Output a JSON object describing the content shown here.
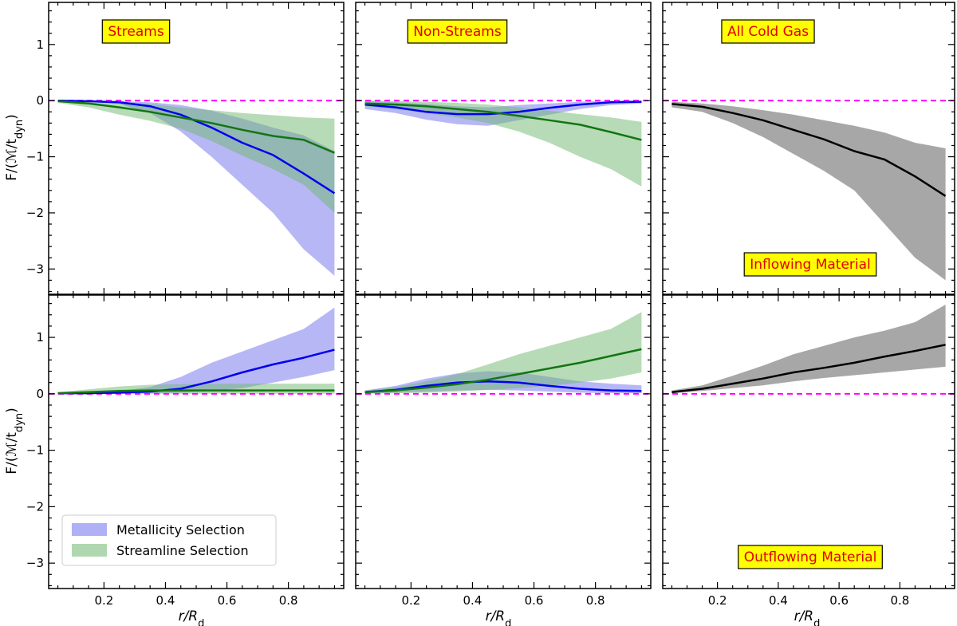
{
  "figure": {
    "xlabel": "r/R_d",
    "ylabel": "F/(ℳ/t_dyn)",
    "xlim": [
      0.02,
      0.98
    ],
    "ylim": [
      -3.45,
      1.75
    ],
    "xticks": [
      0.2,
      0.4,
      0.6,
      0.8
    ],
    "xtick_labels": [
      "0.2",
      "0.4",
      "0.6",
      "0.8"
    ],
    "yticks": [
      -3,
      -2,
      -1,
      0,
      1
    ],
    "ytick_labels": [
      "−3",
      "−2",
      "−1",
      "0",
      "1"
    ]
  },
  "colors": {
    "metallicity_line": "#0000ee",
    "metallicity_band": "#7070ee",
    "streamline_line": "#127512",
    "streamline_band": "#70b870",
    "allgas_line": "#000000",
    "allgas_band": "#8a8a8a",
    "zero_line": "#ff00ff",
    "annotation_bg": "#ffff00",
    "annotation_text": "#e00000"
  },
  "legend": {
    "metallicity": "Metallicity Selection",
    "streamline": "Streamline Selection"
  },
  "chart_data": [
    {
      "type": "line",
      "id": "streams-inflow",
      "title": "Streams",
      "annotation": "",
      "x": [
        0.05,
        0.15,
        0.25,
        0.35,
        0.45,
        0.55,
        0.65,
        0.75,
        0.85,
        0.95
      ],
      "series": [
        {
          "name": "Metallicity Selection",
          "color_key": "metallicity",
          "y": [
            0.0,
            -0.01,
            -0.03,
            -0.1,
            -0.25,
            -0.48,
            -0.75,
            -0.97,
            -1.3,
            -1.65
          ],
          "lo": [
            0.0,
            -0.02,
            -0.06,
            -0.22,
            -0.55,
            -1.0,
            -1.5,
            -2.0,
            -2.65,
            -3.12
          ],
          "hi": [
            0.0,
            0.0,
            -0.01,
            -0.03,
            -0.08,
            -0.18,
            -0.32,
            -0.48,
            -0.62,
            -0.9
          ]
        },
        {
          "name": "Streamline Selection",
          "color_key": "streamline",
          "y": [
            -0.01,
            -0.05,
            -0.12,
            -0.2,
            -0.3,
            -0.4,
            -0.52,
            -0.63,
            -0.7,
            -0.93
          ],
          "lo": [
            -0.04,
            -0.12,
            -0.25,
            -0.36,
            -0.5,
            -0.72,
            -0.98,
            -1.22,
            -1.5,
            -2.0
          ],
          "hi": [
            0.0,
            0.0,
            -0.02,
            -0.06,
            -0.12,
            -0.17,
            -0.22,
            -0.26,
            -0.3,
            -0.32
          ]
        }
      ]
    },
    {
      "type": "line",
      "id": "nonstreams-inflow",
      "title": "Non-Streams",
      "annotation": "",
      "x": [
        0.05,
        0.15,
        0.25,
        0.35,
        0.45,
        0.55,
        0.65,
        0.75,
        0.85,
        0.95
      ],
      "series": [
        {
          "name": "Metallicity Selection",
          "color_key": "metallicity",
          "y": [
            -0.07,
            -0.12,
            -0.2,
            -0.24,
            -0.24,
            -0.2,
            -0.13,
            -0.07,
            -0.03,
            -0.02
          ],
          "lo": [
            -0.15,
            -0.22,
            -0.34,
            -0.42,
            -0.45,
            -0.35,
            -0.25,
            -0.15,
            -0.08,
            -0.05
          ],
          "hi": [
            -0.01,
            -0.03,
            -0.06,
            -0.1,
            -0.12,
            -0.08,
            -0.05,
            -0.02,
            0.0,
            0.0
          ]
        },
        {
          "name": "Streamline Selection",
          "color_key": "streamline",
          "y": [
            -0.05,
            -0.07,
            -0.1,
            -0.15,
            -0.2,
            -0.27,
            -0.35,
            -0.43,
            -0.56,
            -0.7
          ],
          "lo": [
            -0.1,
            -0.15,
            -0.22,
            -0.3,
            -0.4,
            -0.55,
            -0.75,
            -1.0,
            -1.22,
            -1.53
          ],
          "hi": [
            0.0,
            -0.01,
            -0.02,
            -0.04,
            -0.07,
            -0.12,
            -0.18,
            -0.24,
            -0.3,
            -0.38
          ]
        }
      ]
    },
    {
      "type": "line",
      "id": "allgas-inflow",
      "title": "All Cold Gas",
      "annotation": "Inflowing Material",
      "x": [
        0.05,
        0.15,
        0.25,
        0.35,
        0.45,
        0.55,
        0.65,
        0.75,
        0.85,
        0.95
      ],
      "series": [
        {
          "name": "All Cold Gas",
          "color_key": "allgas",
          "y": [
            -0.06,
            -0.11,
            -0.22,
            -0.35,
            -0.52,
            -0.69,
            -0.9,
            -1.05,
            -1.35,
            -1.7
          ],
          "lo": [
            -0.12,
            -0.2,
            -0.4,
            -0.65,
            -0.95,
            -1.25,
            -1.6,
            -2.2,
            -2.8,
            -3.2
          ],
          "hi": [
            -0.02,
            -0.05,
            -0.1,
            -0.17,
            -0.25,
            -0.35,
            -0.45,
            -0.57,
            -0.75,
            -0.85
          ]
        }
      ]
    },
    {
      "type": "line",
      "id": "streams-outflow",
      "title": "",
      "annotation": "",
      "x": [
        0.05,
        0.15,
        0.25,
        0.35,
        0.45,
        0.55,
        0.65,
        0.75,
        0.85,
        0.95
      ],
      "series": [
        {
          "name": "Metallicity Selection",
          "color_key": "metallicity",
          "y": [
            0.01,
            0.01,
            0.02,
            0.04,
            0.09,
            0.22,
            0.38,
            0.52,
            0.64,
            0.78
          ],
          "lo": [
            0.0,
            0.0,
            0.0,
            0.01,
            0.02,
            0.05,
            0.1,
            0.2,
            0.3,
            0.42
          ],
          "hi": [
            0.02,
            0.03,
            0.05,
            0.12,
            0.3,
            0.55,
            0.75,
            0.95,
            1.15,
            1.53
          ]
        },
        {
          "name": "Streamline Selection",
          "color_key": "streamline",
          "y": [
            0.01,
            0.03,
            0.05,
            0.06,
            0.06,
            0.06,
            0.06,
            0.06,
            0.06,
            0.06
          ],
          "lo": [
            0.0,
            0.0,
            0.0,
            0.0,
            0.0,
            0.0,
            0.0,
            0.0,
            0.0,
            0.0
          ],
          "hi": [
            0.03,
            0.08,
            0.13,
            0.16,
            0.17,
            0.18,
            0.18,
            0.18,
            0.18,
            0.18
          ]
        }
      ]
    },
    {
      "type": "line",
      "id": "nonstreams-outflow",
      "title": "",
      "annotation": "",
      "x": [
        0.05,
        0.15,
        0.25,
        0.35,
        0.45,
        0.55,
        0.65,
        0.75,
        0.85,
        0.95
      ],
      "series": [
        {
          "name": "Metallicity Selection",
          "color_key": "metallicity",
          "y": [
            0.03,
            0.07,
            0.14,
            0.2,
            0.22,
            0.2,
            0.14,
            0.09,
            0.06,
            0.05
          ],
          "lo": [
            0.01,
            0.02,
            0.04,
            0.06,
            0.07,
            0.06,
            0.04,
            0.02,
            0.01,
            0.01
          ],
          "hi": [
            0.06,
            0.14,
            0.27,
            0.36,
            0.4,
            0.38,
            0.3,
            0.22,
            0.18,
            0.15
          ]
        },
        {
          "name": "Streamline Selection",
          "color_key": "streamline",
          "y": [
            0.03,
            0.06,
            0.11,
            0.17,
            0.25,
            0.35,
            0.45,
            0.55,
            0.67,
            0.79
          ],
          "lo": [
            0.0,
            0.01,
            0.02,
            0.04,
            0.07,
            0.1,
            0.14,
            0.2,
            0.27,
            0.38
          ],
          "hi": [
            0.06,
            0.12,
            0.22,
            0.35,
            0.52,
            0.7,
            0.85,
            1.0,
            1.15,
            1.45
          ]
        }
      ]
    },
    {
      "type": "line",
      "id": "allgas-outflow",
      "title": "",
      "annotation": "Outflowing Material",
      "x": [
        0.05,
        0.15,
        0.25,
        0.35,
        0.45,
        0.55,
        0.65,
        0.75,
        0.85,
        0.95
      ],
      "series": [
        {
          "name": "All Cold Gas",
          "color_key": "allgas",
          "y": [
            0.03,
            0.09,
            0.18,
            0.27,
            0.38,
            0.46,
            0.55,
            0.66,
            0.76,
            0.87
          ],
          "lo": [
            0.01,
            0.05,
            0.1,
            0.15,
            0.22,
            0.28,
            0.33,
            0.38,
            0.43,
            0.48
          ],
          "hi": [
            0.06,
            0.15,
            0.32,
            0.5,
            0.7,
            0.85,
            1.0,
            1.12,
            1.27,
            1.58
          ]
        }
      ]
    }
  ]
}
